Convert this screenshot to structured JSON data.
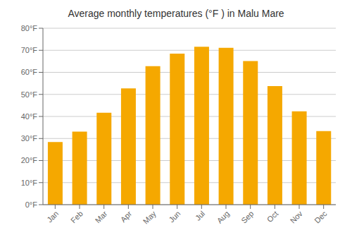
{
  "chart_data": {
    "type": "bar",
    "title": "Average monthly temperatures (°F ) in Malu Mare",
    "categories": [
      "Jan",
      "Feb",
      "Mar",
      "Apr",
      "May",
      "Jun",
      "Jul",
      "Aug",
      "Sep",
      "Oct",
      "Nov",
      "Dec"
    ],
    "values": [
      28.4,
      33.1,
      41.7,
      52.7,
      62.8,
      68.5,
      71.6,
      71.1,
      65.1,
      53.8,
      42.3,
      33.4
    ],
    "color": "#F5A800",
    "ylim": [
      0,
      80
    ],
    "yticks": [
      {
        "value": 0,
        "label": "0°F"
      },
      {
        "value": 10,
        "label": "10°F"
      },
      {
        "value": 20,
        "label": "20°F"
      },
      {
        "value": 30,
        "label": "30°F"
      },
      {
        "value": 40,
        "label": "40°F"
      },
      {
        "value": 50,
        "label": "50°F"
      },
      {
        "value": 60,
        "label": "60°F"
      },
      {
        "value": 70,
        "label": "70°F"
      },
      {
        "value": 80,
        "label": "80°F"
      }
    ],
    "grid": true
  }
}
